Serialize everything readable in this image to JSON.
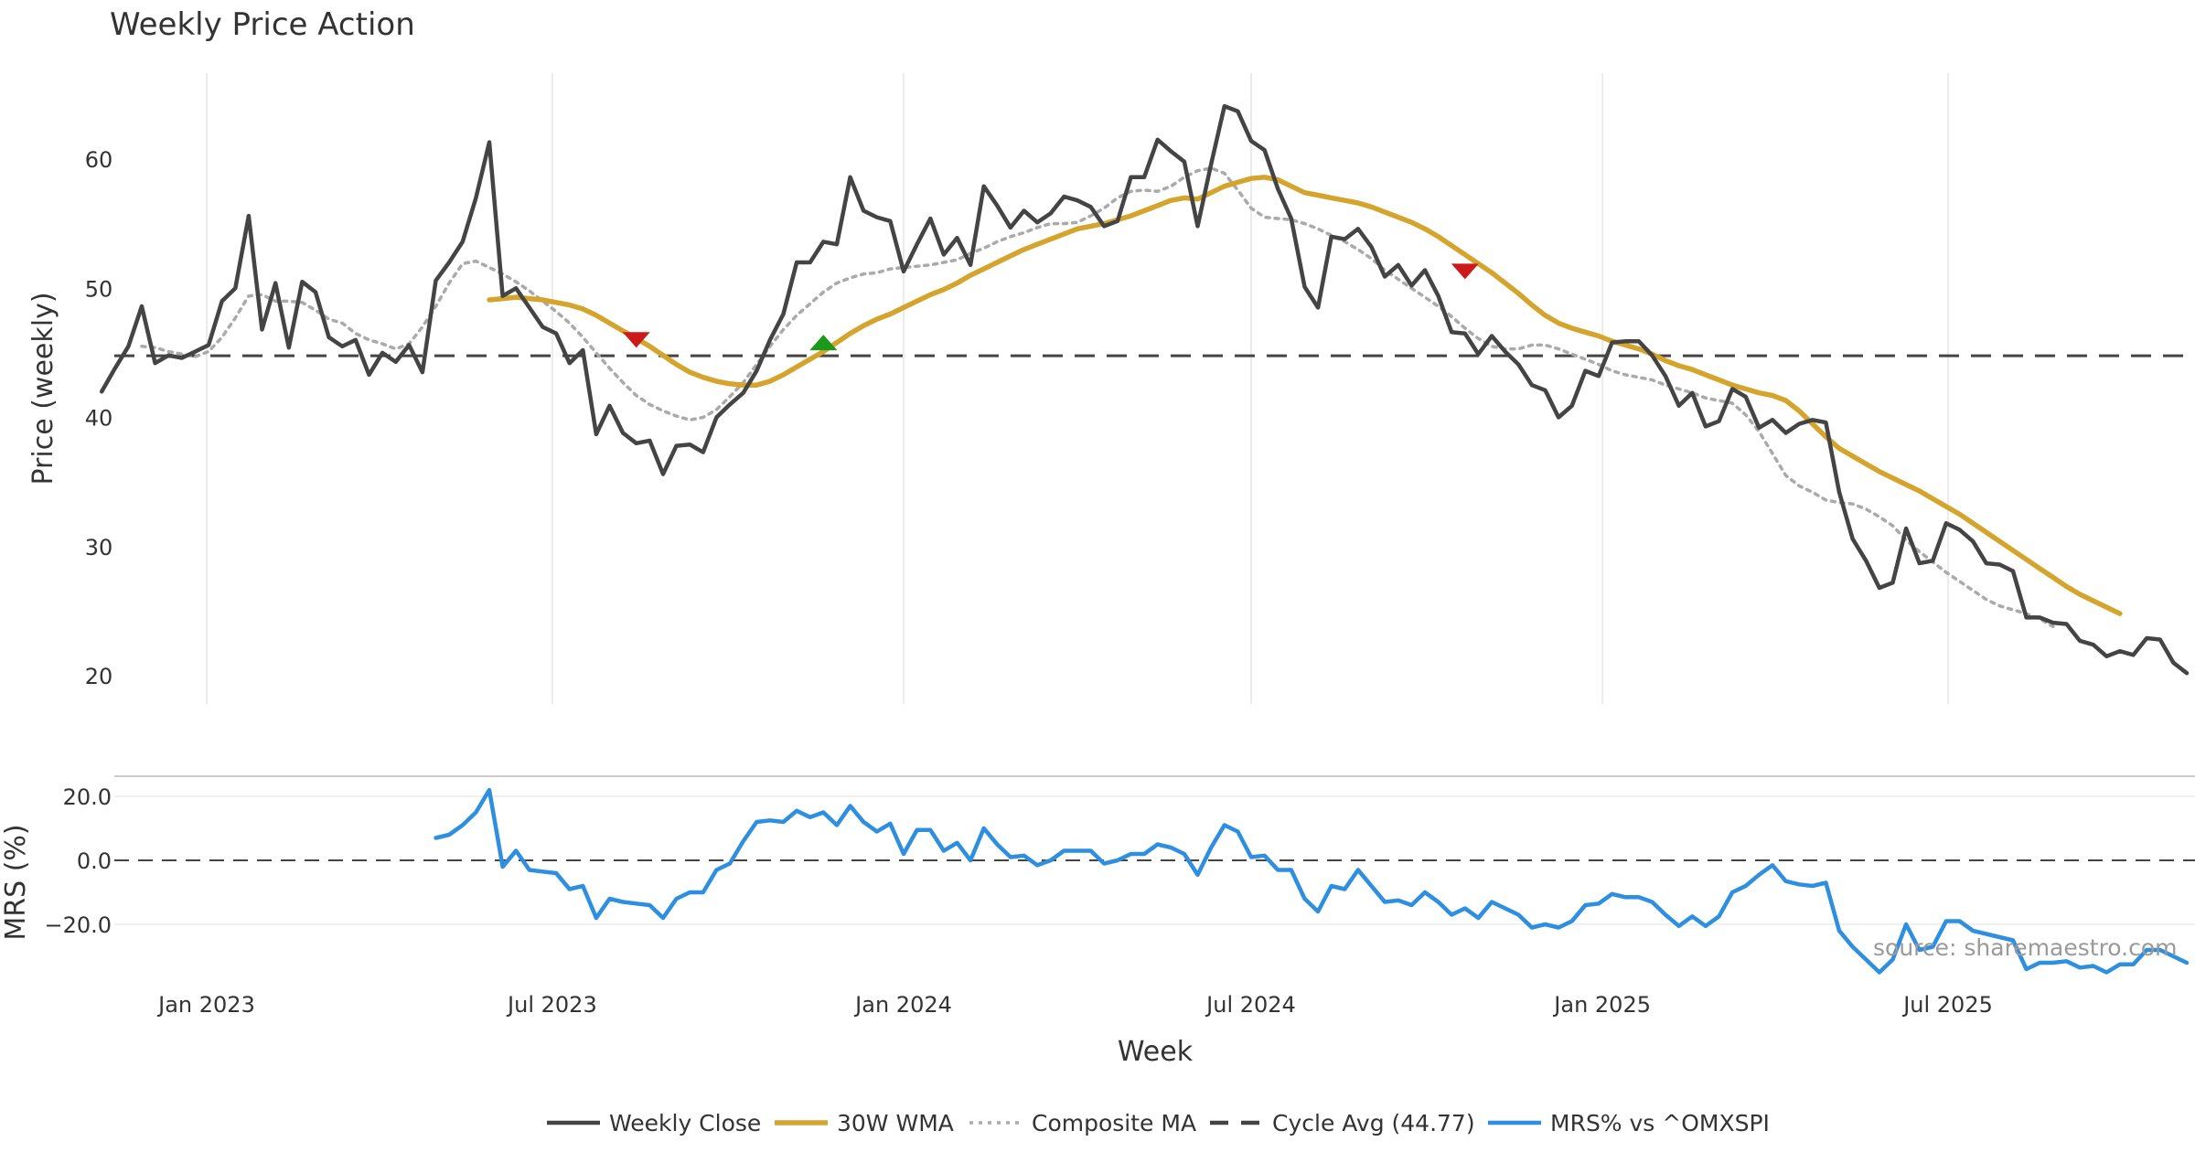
{
  "chart_data": {
    "type": "line",
    "title": "Weekly Price Action",
    "xlabel": "Week",
    "ylabel": "Price (weekly)",
    "mrs_ylabel": "MRS (%)",
    "source": "source: sharemaestro.com",
    "x_start": "2022-11-07",
    "x_step_days": 7,
    "x_ticks": [
      {
        "date": "2023-01-01",
        "label": "Jan 2023"
      },
      {
        "date": "2023-07-01",
        "label": "Jul 2023"
      },
      {
        "date": "2024-01-01",
        "label": "Jan 2024"
      },
      {
        "date": "2024-07-01",
        "label": "Jul 2024"
      },
      {
        "date": "2025-01-01",
        "label": "Jan 2025"
      },
      {
        "date": "2025-07-01",
        "label": "Jul 2025"
      }
    ],
    "ylim": [
      18,
      66
    ],
    "y_ticks": [
      20,
      30,
      40,
      50,
      60
    ],
    "mrs_ylim": [
      -38,
      28
    ],
    "mrs_ticks": [
      {
        "value": 20,
        "label": "20.0"
      },
      {
        "value": 0,
        "label": "0.0"
      },
      {
        "value": -20,
        "label": "−20.0"
      }
    ],
    "cycle_avg": 44.77,
    "grid": true,
    "legend_position": "bottom-center",
    "legend": [
      {
        "label": "Weekly Close",
        "color": "#444444",
        "style": "solid"
      },
      {
        "label": "30W WMA",
        "color": "#d4a42c",
        "style": "solid"
      },
      {
        "label": "Composite MA",
        "color": "#aaaaaa",
        "style": "dotted"
      },
      {
        "label": "Cycle Avg (44.77)",
        "color": "#444444",
        "style": "dashed"
      },
      {
        "label": "MRS% vs ^OMXSPI",
        "color": "#2e8fe0",
        "style": "solid"
      }
    ],
    "signals": [
      {
        "date": "2023-08-14",
        "price": 46.0,
        "type": "sell",
        "color": "#cc1a1a"
      },
      {
        "date": "2023-11-20",
        "price": 45.8,
        "type": "buy",
        "color": "#1a9a1a"
      },
      {
        "date": "2024-10-21",
        "price": 51.3,
        "type": "sell",
        "color": "#cc1a1a"
      }
    ],
    "series": [
      {
        "name": "Weekly Close",
        "color": "#444444",
        "start_index": 0,
        "values": [
          42.0,
          43.8,
          45.5,
          48.6,
          44.2,
          44.8,
          44.6,
          45.1,
          45.6,
          49.0,
          50.0,
          55.6,
          46.8,
          50.4,
          45.4,
          50.5,
          49.7,
          46.2,
          45.5,
          46.0,
          43.3,
          45.0,
          44.3,
          45.6,
          43.5,
          50.6,
          52.0,
          53.6,
          57.0,
          61.3,
          49.4,
          50.0,
          48.5,
          47.0,
          46.5,
          44.2,
          45.2,
          38.7,
          40.9,
          38.8,
          38.0,
          38.2,
          35.6,
          37.8,
          37.9,
          37.3,
          40.0,
          41.0,
          41.9,
          43.6,
          46.0,
          48.0,
          52.0,
          52.0,
          53.6,
          53.4,
          58.6,
          56.0,
          55.5,
          55.2,
          51.3,
          53.4,
          55.4,
          52.6,
          53.9,
          51.8,
          57.9,
          56.4,
          54.7,
          56.0,
          55.1,
          55.8,
          57.1,
          56.8,
          56.3,
          54.8,
          55.2,
          58.6,
          58.6,
          61.5,
          60.6,
          59.8,
          54.8,
          59.6,
          64.1,
          63.7,
          61.4,
          60.7,
          57.7,
          55.4,
          50.1,
          48.5,
          54.0,
          53.8,
          54.6,
          53.2,
          50.9,
          51.8,
          50.2,
          51.4,
          49.4,
          46.6,
          46.5,
          44.9,
          46.3,
          45.1,
          44.1,
          42.5,
          42.1,
          40.0,
          40.9,
          43.6,
          43.2,
          45.8,
          45.9,
          45.9,
          44.8,
          43.2,
          40.9,
          41.9,
          39.3,
          39.7,
          42.2,
          41.6,
          39.2,
          39.8,
          38.8,
          39.5,
          39.8,
          39.6,
          34.2,
          30.6,
          28.9,
          26.8,
          27.2,
          31.4,
          28.7,
          28.9,
          31.8,
          31.3,
          30.4,
          28.7,
          28.6,
          28.1,
          24.5,
          24.5,
          24.1,
          24.0,
          22.7,
          22.4,
          21.5,
          21.9,
          21.6,
          22.9,
          22.8,
          21.0,
          20.2
        ]
      },
      {
        "name": "30W WMA",
        "color": "#d4a42c",
        "start_index": 29,
        "values": [
          49.1,
          49.2,
          49.3,
          49.2,
          49.1,
          48.9,
          48.7,
          48.4,
          47.9,
          47.3,
          46.7,
          46.1,
          45.5,
          44.8,
          44.1,
          43.5,
          43.1,
          42.8,
          42.6,
          42.5,
          42.5,
          42.8,
          43.3,
          43.9,
          44.5,
          45.1,
          45.8,
          46.5,
          47.1,
          47.6,
          48.0,
          48.5,
          49.0,
          49.5,
          49.9,
          50.4,
          51.0,
          51.5,
          52.0,
          52.5,
          53.0,
          53.4,
          53.8,
          54.2,
          54.6,
          54.8,
          55.0,
          55.3,
          55.6,
          56.0,
          56.4,
          56.8,
          57.0,
          56.9,
          57.4,
          57.9,
          58.2,
          58.5,
          58.6,
          58.4,
          57.9,
          57.4,
          57.2,
          57.0,
          56.8,
          56.6,
          56.3,
          55.9,
          55.5,
          55.1,
          54.6,
          54.0,
          53.3,
          52.6,
          51.9,
          51.2,
          50.4,
          49.6,
          48.7,
          47.9,
          47.3,
          46.9,
          46.6,
          46.3,
          45.9,
          45.6,
          45.3,
          44.9,
          44.4,
          44.0,
          43.7,
          43.3,
          42.9,
          42.5,
          42.2,
          41.9,
          41.7,
          41.3,
          40.5,
          39.5,
          38.5,
          37.6,
          37.0,
          36.4,
          35.8,
          35.3,
          34.8,
          34.3,
          33.7,
          33.1,
          32.5,
          31.8,
          31.1,
          30.4,
          29.7,
          29.0,
          28.3,
          27.6,
          26.9,
          26.3,
          25.8,
          25.3,
          24.8
        ]
      },
      {
        "name": "Composite MA",
        "color": "#aaaaaa",
        "start_index": 3,
        "values": [
          45.5,
          45.4,
          45.1,
          44.9,
          44.7,
          45.1,
          46.2,
          47.7,
          49.4,
          49.5,
          49.0,
          49.0,
          48.9,
          48.3,
          47.6,
          47.3,
          46.5,
          46.0,
          45.7,
          45.3,
          45.7,
          47.0,
          48.6,
          50.4,
          51.9,
          52.1,
          51.6,
          51.1,
          50.5,
          49.8,
          49.0,
          48.2,
          47.3,
          46.2,
          45.0,
          43.8,
          42.7,
          41.7,
          41.0,
          40.5,
          40.1,
          39.8,
          40.0,
          40.6,
          41.6,
          42.7,
          44.1,
          45.5,
          46.8,
          47.9,
          48.8,
          49.7,
          50.4,
          50.8,
          51.1,
          51.2,
          51.5,
          51.6,
          51.7,
          51.8,
          52.0,
          52.2,
          52.7,
          53.1,
          53.6,
          54.0,
          54.3,
          54.7,
          55.0,
          55.0,
          55.1,
          55.6,
          56.2,
          57.0,
          57.5,
          57.6,
          57.5,
          57.9,
          58.6,
          59.1,
          59.3,
          58.9,
          57.6,
          56.2,
          55.5,
          55.4,
          55.3,
          55.0,
          54.6,
          54.1,
          53.6,
          53.0,
          52.3,
          51.4,
          50.7,
          50.0,
          49.3,
          48.6,
          47.8,
          46.9,
          46.1,
          45.5,
          45.3,
          45.3,
          45.6,
          45.6,
          45.3,
          44.9,
          44.5,
          44.1,
          43.6,
          43.3,
          43.1,
          42.9,
          42.5,
          42.2,
          41.9,
          41.5,
          41.3,
          41.1,
          40.2,
          38.9,
          37.2,
          35.5,
          34.7,
          34.2,
          33.6,
          33.4,
          33.3,
          32.9,
          32.3,
          31.6,
          30.5,
          29.6,
          28.8,
          28.0,
          27.3,
          26.6,
          25.9,
          25.4,
          25.1,
          24.8,
          24.4,
          23.8
        ]
      },
      {
        "name": "MRS% vs ^OMXSPI",
        "color": "#2e8fe0",
        "start_index": 25,
        "values": [
          7.0,
          8.0,
          11.0,
          15.0,
          22.0,
          -2.0,
          3.0,
          -3.0,
          -3.5,
          -4.0,
          -9.0,
          -8.0,
          -18.0,
          -12.0,
          -13.0,
          -13.5,
          -14.0,
          -18.0,
          -12.0,
          -10.0,
          -10.0,
          -3.0,
          -1.0,
          6.0,
          12.0,
          12.5,
          12.0,
          15.5,
          13.5,
          15.0,
          11.0,
          17.0,
          12.0,
          9.0,
          11.5,
          2.0,
          9.5,
          9.5,
          3.0,
          5.5,
          0.0,
          10.0,
          5.0,
          1.0,
          1.5,
          -1.5,
          0.0,
          3.0,
          3.0,
          3.0,
          -1.0,
          0.0,
          2.0,
          2.0,
          5.0,
          4.0,
          2.0,
          -4.5,
          4.0,
          11.0,
          9.0,
          1.0,
          1.5,
          -3.0,
          -3.0,
          -12.0,
          -16.0,
          -8.0,
          -9.0,
          -3.0,
          -8.0,
          -13.0,
          -12.5,
          -14.0,
          -10.0,
          -13.0,
          -17.0,
          -15.0,
          -18.0,
          -13.0,
          -15.0,
          -17.0,
          -21.0,
          -20.0,
          -21.0,
          -19.0,
          -14.0,
          -13.5,
          -10.5,
          -11.5,
          -11.5,
          -13.0,
          -17.0,
          -20.5,
          -17.5,
          -20.5,
          -17.5,
          -10.0,
          -8.0,
          -4.5,
          -1.5,
          -6.5,
          -7.5,
          -8.0,
          -7.0,
          -22.0,
          -27.0,
          -31.0,
          -35.0,
          -31.0,
          -20.0,
          -28.0,
          -27.0,
          -19.0,
          -19.0,
          -22.0,
          -23.0,
          -24.0,
          -25.0,
          -34.0,
          -32.0,
          -32.0,
          -31.5,
          -33.5,
          -33.0,
          -35.0,
          -32.5,
          -32.5,
          -28.0,
          -28.0,
          -30.0,
          -32.0
        ]
      }
    ]
  }
}
